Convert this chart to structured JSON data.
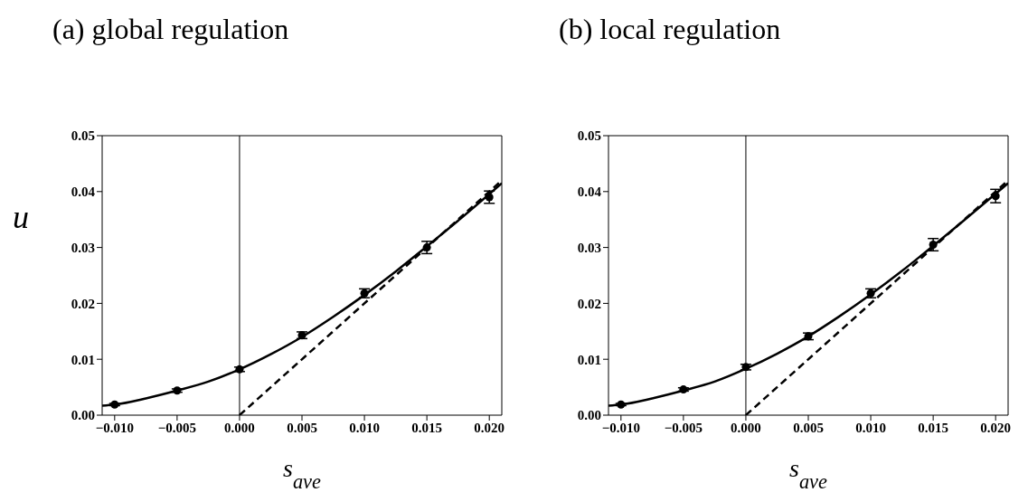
{
  "chart_data": [
    {
      "type": "scatter",
      "title": "(a) global regulation",
      "xlabel": "s$_{ave}$",
      "ylabel": "u",
      "xlim": [
        -0.011,
        0.021
      ],
      "ylim": [
        0,
        0.05
      ],
      "xticks": [
        {
          "value": -0.01,
          "label": "−0.010"
        },
        {
          "value": -0.005,
          "label": "−0.005"
        },
        {
          "value": 0,
          "label": "0.000"
        },
        {
          "value": 0.005,
          "label": "0.005"
        },
        {
          "value": 0.01,
          "label": "0.010"
        },
        {
          "value": 0.015,
          "label": "0.015"
        },
        {
          "value": 0.02,
          "label": "0.020"
        }
      ],
      "yticks": [
        {
          "value": 0,
          "label": "0.00"
        },
        {
          "value": 0.01,
          "label": "0.01"
        },
        {
          "value": 0.02,
          "label": "0.02"
        },
        {
          "value": 0.03,
          "label": "0.03"
        },
        {
          "value": 0.04,
          "label": "0.04"
        },
        {
          "value": 0.05,
          "label": "0.05"
        }
      ],
      "ref_lines": [
        {
          "axis": "x",
          "value": 0,
          "color": "#000000"
        }
      ],
      "series": [
        {
          "marker": "circle",
          "color": "#000000",
          "x": [
            -0.01,
            -0.005,
            0,
            0.005,
            0.01,
            0.015,
            0.02
          ],
          "values": [
            0.0019,
            0.0044,
            0.0082,
            0.0143,
            0.0218,
            0.03,
            0.039
          ],
          "errors": [
            0.0002,
            0.0003,
            0.0004,
            0.0006,
            0.0008,
            0.0011,
            0.0011
          ]
        },
        {
          "type": "line",
          "color": "#000000",
          "line_style": "solid",
          "x": [
            -0.011,
            -0.01,
            -0.0075,
            -0.005,
            -0.0025,
            0,
            0.0025,
            0.005,
            0.0075,
            0.01,
            0.0125,
            0.015,
            0.0175,
            0.021
          ],
          "values": [
            0.0017,
            0.0019,
            0.003,
            0.0044,
            0.006,
            0.0082,
            0.0109,
            0.014,
            0.0176,
            0.0215,
            0.0257,
            0.0302,
            0.0348,
            0.0415
          ]
        },
        {
          "type": "line",
          "color": "#000000",
          "line_style": "dashed",
          "x": [
            0,
            0.021
          ],
          "values": [
            0,
            0.042
          ]
        }
      ]
    },
    {
      "type": "scatter",
      "title": "(b) local regulation",
      "xlabel": "s$_{ave}$",
      "xlim": [
        -0.011,
        0.021
      ],
      "ylim": [
        0,
        0.05
      ],
      "xticks": [
        {
          "value": -0.01,
          "label": "−0.010"
        },
        {
          "value": -0.005,
          "label": "−0.005"
        },
        {
          "value": 0,
          "label": "0.000"
        },
        {
          "value": 0.005,
          "label": "0.005"
        },
        {
          "value": 0.01,
          "label": "0.010"
        },
        {
          "value": 0.015,
          "label": "0.015"
        },
        {
          "value": 0.02,
          "label": "0.020"
        }
      ],
      "yticks": [
        {
          "value": 0,
          "label": "0.00"
        },
        {
          "value": 0.01,
          "label": "0.01"
        },
        {
          "value": 0.02,
          "label": "0.02"
        },
        {
          "value": 0.03,
          "label": "0.03"
        },
        {
          "value": 0.04,
          "label": "0.04"
        },
        {
          "value": 0.05,
          "label": "0.05"
        }
      ],
      "ref_lines": [
        {
          "axis": "x",
          "value": 0,
          "color": "#000000"
        }
      ],
      "series": [
        {
          "marker": "circle",
          "color": "#000000",
          "x": [
            -0.01,
            -0.005,
            0,
            0.005,
            0.01,
            0.015,
            0.02
          ],
          "values": [
            0.0019,
            0.0046,
            0.0086,
            0.0141,
            0.0218,
            0.0305,
            0.0392
          ],
          "errors": [
            0.0002,
            0.0003,
            0.0005,
            0.0006,
            0.0008,
            0.0011,
            0.0012
          ]
        },
        {
          "type": "line",
          "color": "#000000",
          "line_style": "solid",
          "x": [
            -0.011,
            -0.01,
            -0.0075,
            -0.005,
            -0.0025,
            0,
            0.0025,
            0.005,
            0.0075,
            0.01,
            0.0125,
            0.015,
            0.0175,
            0.021
          ],
          "values": [
            0.0017,
            0.0019,
            0.003,
            0.0044,
            0.006,
            0.0083,
            0.011,
            0.0141,
            0.0177,
            0.0216,
            0.0258,
            0.0303,
            0.0349,
            0.0415
          ]
        },
        {
          "type": "line",
          "color": "#000000",
          "line_style": "dashed",
          "x": [
            0,
            0.021
          ],
          "values": [
            0,
            0.042
          ]
        }
      ]
    }
  ]
}
